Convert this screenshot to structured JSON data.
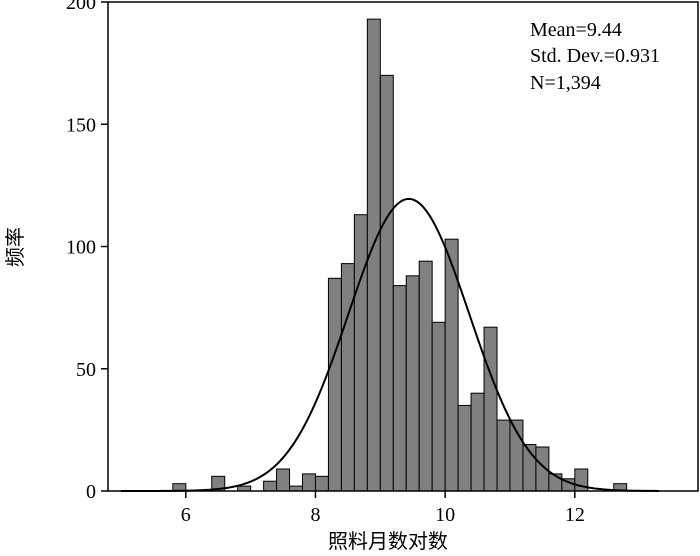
{
  "chart_data": {
    "type": "bar",
    "subtype": "histogram",
    "xlabel": "照料月数对数",
    "ylabel": "频率",
    "xlim": [
      4.8,
      13.9
    ],
    "ylim": [
      0,
      200
    ],
    "x_ticks": [
      6,
      8,
      10,
      12
    ],
    "y_ticks": [
      0,
      50,
      100,
      150,
      200
    ],
    "grid": false,
    "legend": "none",
    "bar_color": "#808080",
    "bar_edge_color": "#000000",
    "bin_width": 0.2,
    "bins": [
      {
        "x0": 5.8,
        "count": 3
      },
      {
        "x0": 6.0,
        "count": 0
      },
      {
        "x0": 6.2,
        "count": 0
      },
      {
        "x0": 6.4,
        "count": 6
      },
      {
        "x0": 6.6,
        "count": 0
      },
      {
        "x0": 6.8,
        "count": 2
      },
      {
        "x0": 7.0,
        "count": 0
      },
      {
        "x0": 7.2,
        "count": 4
      },
      {
        "x0": 7.4,
        "count": 9
      },
      {
        "x0": 7.6,
        "count": 2
      },
      {
        "x0": 7.8,
        "count": 7
      },
      {
        "x0": 8.0,
        "count": 6
      },
      {
        "x0": 8.2,
        "count": 87
      },
      {
        "x0": 8.4,
        "count": 93
      },
      {
        "x0": 8.6,
        "count": 113
      },
      {
        "x0": 8.8,
        "count": 193
      },
      {
        "x0": 9.0,
        "count": 170
      },
      {
        "x0": 9.2,
        "count": 84
      },
      {
        "x0": 9.4,
        "count": 88
      },
      {
        "x0": 9.6,
        "count": 94
      },
      {
        "x0": 9.8,
        "count": 69
      },
      {
        "x0": 10.0,
        "count": 103
      },
      {
        "x0": 10.2,
        "count": 35
      },
      {
        "x0": 10.4,
        "count": 40
      },
      {
        "x0": 10.6,
        "count": 67
      },
      {
        "x0": 10.8,
        "count": 29
      },
      {
        "x0": 11.0,
        "count": 29
      },
      {
        "x0": 11.2,
        "count": 19
      },
      {
        "x0": 11.4,
        "count": 18
      },
      {
        "x0": 11.6,
        "count": 7
      },
      {
        "x0": 11.8,
        "count": 5
      },
      {
        "x0": 12.0,
        "count": 9
      },
      {
        "x0": 12.2,
        "count": 0
      },
      {
        "x0": 12.4,
        "count": 0
      },
      {
        "x0": 12.6,
        "count": 3
      }
    ],
    "normal_curve": {
      "mean": 9.44,
      "std_dev": 0.931,
      "n": 1394
    },
    "stats_text": [
      "Mean=9.44",
      "Std. Dev.=0.931",
      "N=1,394"
    ]
  }
}
